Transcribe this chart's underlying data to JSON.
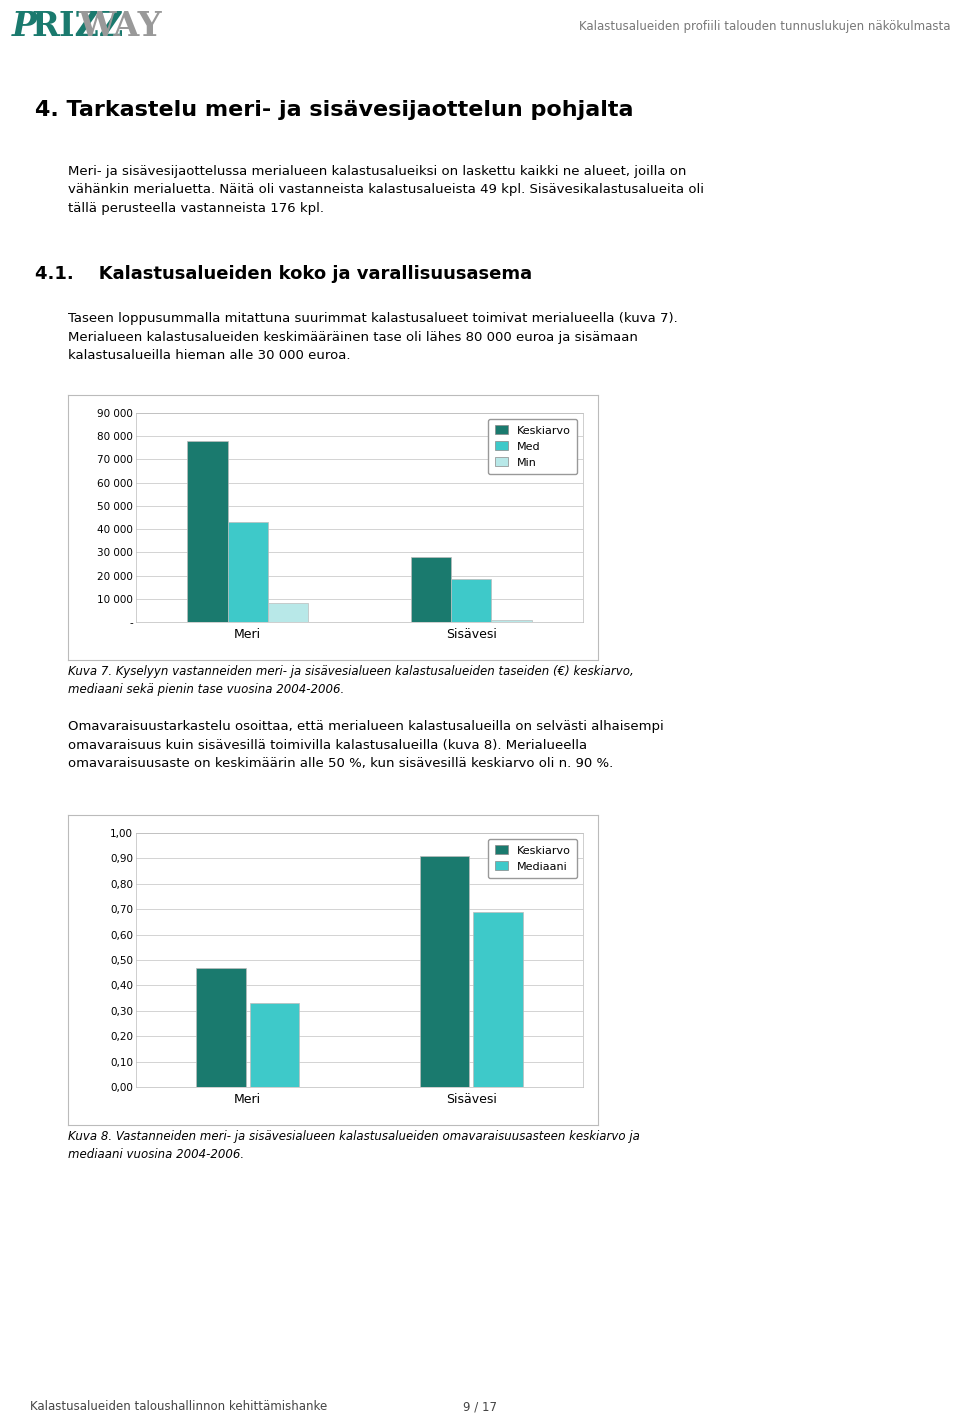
{
  "header_title": "Kalastusalueiden profiili talouden tunnuslukujen näkökulmasta",
  "section_title": "4. Tarkastelu meri- ja sisävesijaottelun pohjalta",
  "section_body_lines": [
    "Meri- ja sisävesijaottelussa merialueen kalastusalueiksi on laskettu kaikki ne alueet, joilla on",
    "vähänkin merialuetta. Näitä oli vastanneista kalastusalueista 49 kpl. Sisävesikalastusalueita oli",
    "tällä perusteella vastanneista 176 kpl."
  ],
  "subsection_num": "4.1.",
  "subsection_title": "Kalastusalueiden koko ja varallisuusasema",
  "subsection_body1_lines": [
    "Taseen loppusummalla mitattuna suurimmat kalastusalueet toimivat merialueella (kuva 7).",
    "Merialueen kalastusalueiden keskimääräinen tase oli lähes 80 000 euroa ja sisämaan",
    "kalastusalueilla hieman alle 30 000 euroa."
  ],
  "chart1_categories": [
    "Meri",
    "Sisävesi"
  ],
  "chart1_series_keys": [
    "Keskiarvo",
    "Med",
    "Min"
  ],
  "chart1_meri": [
    78000,
    43000,
    8000
  ],
  "chart1_sisavesi": [
    28000,
    18500,
    1000
  ],
  "chart1_colors": [
    "#1a7a6e",
    "#3ec9c9",
    "#b8e8e8"
  ],
  "chart1_ylim": [
    0,
    90000
  ],
  "chart1_yticks": [
    0,
    10000,
    20000,
    30000,
    40000,
    50000,
    60000,
    70000,
    80000,
    90000
  ],
  "chart1_ytick_labels": [
    "-",
    "10 000",
    "20 000",
    "30 000",
    "40 000",
    "50 000",
    "60 000",
    "70 000",
    "80 000",
    "90 000"
  ],
  "chart1_caption_lines": [
    "Kuva 7. Kyselyyn vastanneiden meri- ja sisävesialueen kalastusalueiden taseiden (€) keskiarvo,",
    "mediaani sekä pienin tase vuosina 2004-2006."
  ],
  "subsection_body2_lines": [
    "Omavaraisuustarkastelu osoittaa, että merialueen kalastusalueilla on selvästi alhaisempi",
    "omavaraisuus kuin sisävesillä toimivilla kalastusalueilla (kuva 8). Merialueella",
    "omavaraisuusaste on keskimäärin alle 50 %, kun sisävesillä keskiarvo oli n. 90 %."
  ],
  "chart2_categories": [
    "Meri",
    "Sisävesi"
  ],
  "chart2_series_keys": [
    "Keskiarvo",
    "Mediaani"
  ],
  "chart2_meri": [
    0.47,
    0.33
  ],
  "chart2_sisavesi": [
    0.91,
    0.69
  ],
  "chart2_colors": [
    "#1a7a6e",
    "#3ec9c9"
  ],
  "chart2_ylim": [
    0,
    1.0
  ],
  "chart2_yticks": [
    0.0,
    0.1,
    0.2,
    0.3,
    0.4,
    0.5,
    0.6,
    0.7,
    0.8,
    0.9,
    1.0
  ],
  "chart2_ytick_labels": [
    "0,00",
    "0,10",
    "0,20",
    "0,30",
    "0,40",
    "0,50",
    "0,60",
    "0,70",
    "0,80",
    "0,90",
    "1,00"
  ],
  "chart2_caption_lines": [
    "Kuva 8. Vastanneiden meri- ja sisävesialueen kalastusalueiden omavaraisuusasteen keskiarvo ja",
    "mediaani vuosina 2004-2006."
  ],
  "footer_text": "Kalastusalueiden taloushallinnon kehittämishanke",
  "footer_page": "9 / 17",
  "teal_line_color": "#2a8a82",
  "chart_border_color": "#aaaaaa",
  "grid_color": "#cccccc"
}
